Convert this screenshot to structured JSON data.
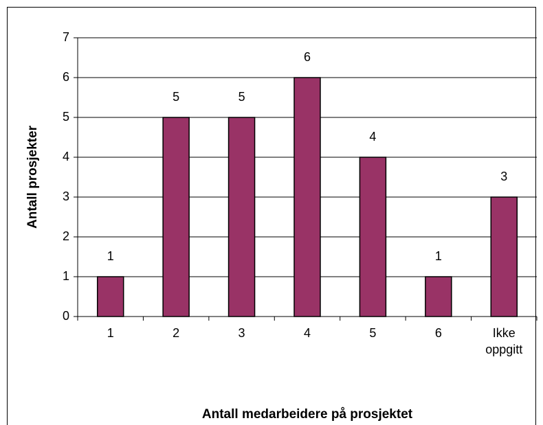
{
  "chart_data": {
    "type": "bar",
    "x_label": "Antall medarbeidere på prosjektet",
    "y_label": "Antall prosjekter",
    "categories": [
      "1",
      "2",
      "3",
      "4",
      "5",
      "6",
      "Ikke oppgitt"
    ],
    "values": [
      1,
      5,
      5,
      6,
      4,
      1,
      3
    ],
    "color": "#993366",
    "ylim": [
      0,
      7
    ],
    "yticks": [
      0,
      1,
      2,
      3,
      4,
      5,
      6,
      7
    ],
    "grid": true
  }
}
